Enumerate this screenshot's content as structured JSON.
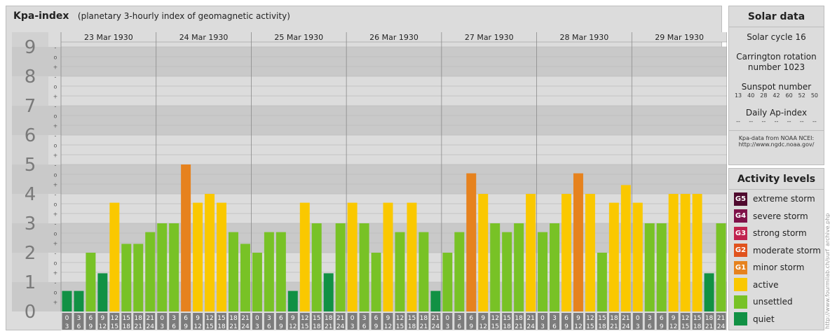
{
  "header": {
    "title": "Kpa-index",
    "subtitle": "(planetary 3-hourly index of geomagnetic activity)"
  },
  "chart_data": {
    "type": "bar",
    "title": "Kpa-index",
    "subtitle": "(planetary 3-hourly index of geomagnetic activity)",
    "ylim": [
      0,
      9
    ],
    "y_ticks": [
      "0",
      "1",
      "2",
      "3",
      "4",
      "5",
      "6",
      "7",
      "8",
      "9"
    ],
    "sub_ticks": [
      "+",
      "o",
      "-"
    ],
    "days": [
      "23 Mar 1930",
      "24 Mar 1930",
      "25 Mar 1930",
      "26 Mar 1930",
      "27 Mar 1930",
      "28 Mar 1930",
      "29 Mar 1930"
    ],
    "hour_labels": [
      [
        "0",
        "3"
      ],
      [
        "3",
        "6"
      ],
      [
        "6",
        "9"
      ],
      [
        "9",
        "12"
      ],
      [
        "12",
        "15"
      ],
      [
        "15",
        "18"
      ],
      [
        "18",
        "21"
      ],
      [
        "21",
        "24"
      ]
    ],
    "values": [
      [
        0.7,
        0.7,
        2.0,
        1.3,
        3.7,
        2.3,
        2.3,
        2.7
      ],
      [
        3.0,
        3.0,
        5.0,
        3.7,
        4.0,
        3.7,
        2.7,
        2.3
      ],
      [
        2.0,
        2.7,
        2.7,
        0.7,
        3.7,
        3.0,
        1.3,
        3.0
      ],
      [
        3.7,
        3.0,
        2.0,
        3.7,
        2.7,
        3.7,
        2.7,
        0.7
      ],
      [
        2.0,
        2.7,
        4.7,
        4.0,
        3.0,
        2.7,
        3.0,
        4.0
      ],
      [
        2.7,
        3.0,
        4.0,
        4.7,
        4.0,
        2.0,
        3.7,
        4.3
      ],
      [
        3.7,
        3.0,
        3.0,
        4.0,
        4.0,
        4.0,
        1.3,
        3.0
      ]
    ],
    "colors": {
      "quiet": "#119144",
      "unsettled": "#78c226",
      "active": "#fac800",
      "minor": "#e6821e",
      "moderate": "#e0521d",
      "strong": "#c0224e",
      "severe": "#7f1249",
      "extreme": "#4f0a2e"
    }
  },
  "solar": {
    "title": "Solar data",
    "cycle": "Solar cycle 16",
    "carrington_1": "Carrington rotation",
    "carrington_2": "number 1023",
    "sunspot_title": "Sunspot number",
    "sunspots": [
      "13",
      "40",
      "28",
      "42",
      "60",
      "52",
      "50"
    ],
    "ap_title": "Daily Ap-index",
    "ap_values": [
      "--",
      "--",
      "--",
      "--",
      "--",
      "--",
      "--"
    ],
    "source_1": "Kpa-data from NOAA NCEI:",
    "source_2": "http://www.ngdc.noaa.gov/"
  },
  "levels": {
    "title": "Activity levels",
    "items": [
      {
        "badge": "G5",
        "label": "extreme storm",
        "color": "#4f0a2e"
      },
      {
        "badge": "G4",
        "label": "severe storm",
        "color": "#7f1249"
      },
      {
        "badge": "G3",
        "label": "strong storm",
        "color": "#c0224e"
      },
      {
        "badge": "G2",
        "label": "moderate storm",
        "color": "#e0521d"
      },
      {
        "badge": "G1",
        "label": "minor storm",
        "color": "#e6821e"
      },
      {
        "badge": "",
        "label": "active",
        "color": "#fac800"
      },
      {
        "badge": "",
        "label": "unsettled",
        "color": "#78c226"
      },
      {
        "badge": "",
        "label": "quiet",
        "color": "#119144"
      }
    ]
  },
  "credit": "http://www.fourmilab.ch/surf_archive.php"
}
